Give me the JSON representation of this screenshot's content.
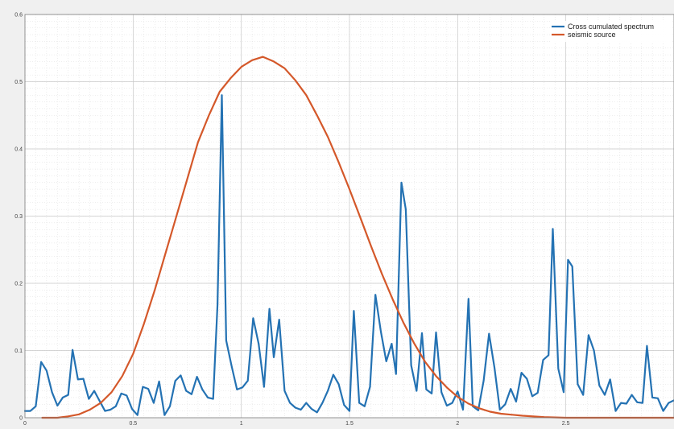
{
  "chart_data": {
    "type": "line",
    "title": "",
    "xlabel": "",
    "ylabel": "",
    "xlim": [
      0,
      3.0
    ],
    "ylim": [
      0,
      0.6
    ],
    "grid": true,
    "minor_grid": true,
    "legend_position": "top-right",
    "x_ticks": [
      0,
      0.5,
      1,
      1.5,
      2,
      2.5
    ],
    "x_tick_labels": [
      "0",
      "0.5",
      "1",
      "1.5",
      "2",
      "2.5"
    ],
    "y_ticks": [
      0,
      0.1,
      0.2,
      0.3,
      0.4,
      0.5,
      0.6
    ],
    "y_tick_labels": [
      "0",
      "0.1",
      "0.2",
      "0.3",
      "0.4",
      "0.5",
      "0.6"
    ],
    "series": [
      {
        "name": "Cross cumulated spectrum",
        "color": "#2472b3",
        "points": [
          [
            0.0,
            0.01
          ],
          [
            0.025,
            0.01
          ],
          [
            0.05,
            0.017
          ],
          [
            0.075,
            0.083
          ],
          [
            0.1,
            0.07
          ],
          [
            0.125,
            0.038
          ],
          [
            0.15,
            0.018
          ],
          [
            0.175,
            0.03
          ],
          [
            0.2,
            0.034
          ],
          [
            0.22,
            0.101
          ],
          [
            0.245,
            0.057
          ],
          [
            0.27,
            0.058
          ],
          [
            0.295,
            0.028
          ],
          [
            0.32,
            0.04
          ],
          [
            0.345,
            0.025
          ],
          [
            0.37,
            0.01
          ],
          [
            0.395,
            0.012
          ],
          [
            0.42,
            0.017
          ],
          [
            0.445,
            0.036
          ],
          [
            0.47,
            0.033
          ],
          [
            0.495,
            0.013
          ],
          [
            0.52,
            0.004
          ],
          [
            0.545,
            0.046
          ],
          [
            0.57,
            0.043
          ],
          [
            0.595,
            0.022
          ],
          [
            0.62,
            0.054
          ],
          [
            0.645,
            0.004
          ],
          [
            0.67,
            0.017
          ],
          [
            0.695,
            0.055
          ],
          [
            0.72,
            0.063
          ],
          [
            0.745,
            0.04
          ],
          [
            0.77,
            0.035
          ],
          [
            0.795,
            0.061
          ],
          [
            0.82,
            0.042
          ],
          [
            0.845,
            0.03
          ],
          [
            0.87,
            0.028
          ],
          [
            0.89,
            0.168
          ],
          [
            0.91,
            0.48
          ],
          [
            0.93,
            0.115
          ],
          [
            0.955,
            0.077
          ],
          [
            0.98,
            0.042
          ],
          [
            1.005,
            0.045
          ],
          [
            1.03,
            0.055
          ],
          [
            1.055,
            0.148
          ],
          [
            1.08,
            0.11
          ],
          [
            1.105,
            0.046
          ],
          [
            1.13,
            0.162
          ],
          [
            1.15,
            0.09
          ],
          [
            1.175,
            0.146
          ],
          [
            1.2,
            0.04
          ],
          [
            1.225,
            0.022
          ],
          [
            1.25,
            0.015
          ],
          [
            1.275,
            0.012
          ],
          [
            1.3,
            0.022
          ],
          [
            1.325,
            0.013
          ],
          [
            1.35,
            0.008
          ],
          [
            1.375,
            0.022
          ],
          [
            1.4,
            0.04
          ],
          [
            1.425,
            0.064
          ],
          [
            1.45,
            0.05
          ],
          [
            1.475,
            0.019
          ],
          [
            1.5,
            0.01
          ],
          [
            1.52,
            0.159
          ],
          [
            1.545,
            0.022
          ],
          [
            1.57,
            0.017
          ],
          [
            1.595,
            0.046
          ],
          [
            1.62,
            0.183
          ],
          [
            1.645,
            0.128
          ],
          [
            1.67,
            0.084
          ],
          [
            1.695,
            0.11
          ],
          [
            1.715,
            0.065
          ],
          [
            1.74,
            0.35
          ],
          [
            1.76,
            0.31
          ],
          [
            1.785,
            0.078
          ],
          [
            1.81,
            0.04
          ],
          [
            1.835,
            0.126
          ],
          [
            1.855,
            0.042
          ],
          [
            1.88,
            0.036
          ],
          [
            1.9,
            0.127
          ],
          [
            1.925,
            0.038
          ],
          [
            1.95,
            0.018
          ],
          [
            1.975,
            0.022
          ],
          [
            2.0,
            0.039
          ],
          [
            2.025,
            0.012
          ],
          [
            2.05,
            0.177
          ],
          [
            2.07,
            0.017
          ],
          [
            2.095,
            0.011
          ],
          [
            2.12,
            0.055
          ],
          [
            2.145,
            0.125
          ],
          [
            2.17,
            0.075
          ],
          [
            2.195,
            0.012
          ],
          [
            2.22,
            0.02
          ],
          [
            2.245,
            0.043
          ],
          [
            2.27,
            0.024
          ],
          [
            2.295,
            0.067
          ],
          [
            2.32,
            0.058
          ],
          [
            2.345,
            0.032
          ],
          [
            2.37,
            0.037
          ],
          [
            2.395,
            0.086
          ],
          [
            2.42,
            0.093
          ],
          [
            2.44,
            0.281
          ],
          [
            2.465,
            0.073
          ],
          [
            2.49,
            0.038
          ],
          [
            2.51,
            0.235
          ],
          [
            2.53,
            0.225
          ],
          [
            2.555,
            0.05
          ],
          [
            2.58,
            0.034
          ],
          [
            2.605,
            0.123
          ],
          [
            2.63,
            0.1
          ],
          [
            2.655,
            0.048
          ],
          [
            2.68,
            0.034
          ],
          [
            2.705,
            0.057
          ],
          [
            2.73,
            0.01
          ],
          [
            2.755,
            0.022
          ],
          [
            2.78,
            0.021
          ],
          [
            2.805,
            0.034
          ],
          [
            2.83,
            0.023
          ],
          [
            2.855,
            0.022
          ],
          [
            2.875,
            0.107
          ],
          [
            2.9,
            0.03
          ],
          [
            2.925,
            0.029
          ],
          [
            2.95,
            0.01
          ],
          [
            2.975,
            0.022
          ],
          [
            3.0,
            0.026
          ]
        ]
      },
      {
        "name": "seismic source",
        "color": "#d4582a",
        "points": [
          [
            0.08,
            0.0
          ],
          [
            0.15,
            0.0
          ],
          [
            0.2,
            0.002
          ],
          [
            0.25,
            0.005
          ],
          [
            0.3,
            0.012
          ],
          [
            0.35,
            0.022
          ],
          [
            0.4,
            0.038
          ],
          [
            0.45,
            0.062
          ],
          [
            0.5,
            0.095
          ],
          [
            0.55,
            0.14
          ],
          [
            0.6,
            0.19
          ],
          [
            0.65,
            0.245
          ],
          [
            0.7,
            0.3
          ],
          [
            0.75,
            0.355
          ],
          [
            0.8,
            0.41
          ],
          [
            0.85,
            0.45
          ],
          [
            0.9,
            0.485
          ],
          [
            0.95,
            0.505
          ],
          [
            1.0,
            0.522
          ],
          [
            1.05,
            0.532
          ],
          [
            1.1,
            0.537
          ],
          [
            1.15,
            0.53
          ],
          [
            1.2,
            0.52
          ],
          [
            1.25,
            0.502
          ],
          [
            1.3,
            0.48
          ],
          [
            1.35,
            0.45
          ],
          [
            1.4,
            0.418
          ],
          [
            1.45,
            0.38
          ],
          [
            1.5,
            0.34
          ],
          [
            1.55,
            0.298
          ],
          [
            1.6,
            0.255
          ],
          [
            1.65,
            0.214
          ],
          [
            1.7,
            0.176
          ],
          [
            1.75,
            0.141
          ],
          [
            1.8,
            0.11
          ],
          [
            1.85,
            0.083
          ],
          [
            1.9,
            0.062
          ],
          [
            1.95,
            0.045
          ],
          [
            2.0,
            0.031
          ],
          [
            2.05,
            0.021
          ],
          [
            2.1,
            0.014
          ],
          [
            2.15,
            0.009
          ],
          [
            2.2,
            0.006
          ],
          [
            2.3,
            0.003
          ],
          [
            2.4,
            0.001
          ],
          [
            2.5,
            0.0
          ],
          [
            3.0,
            0.0
          ]
        ]
      }
    ]
  }
}
